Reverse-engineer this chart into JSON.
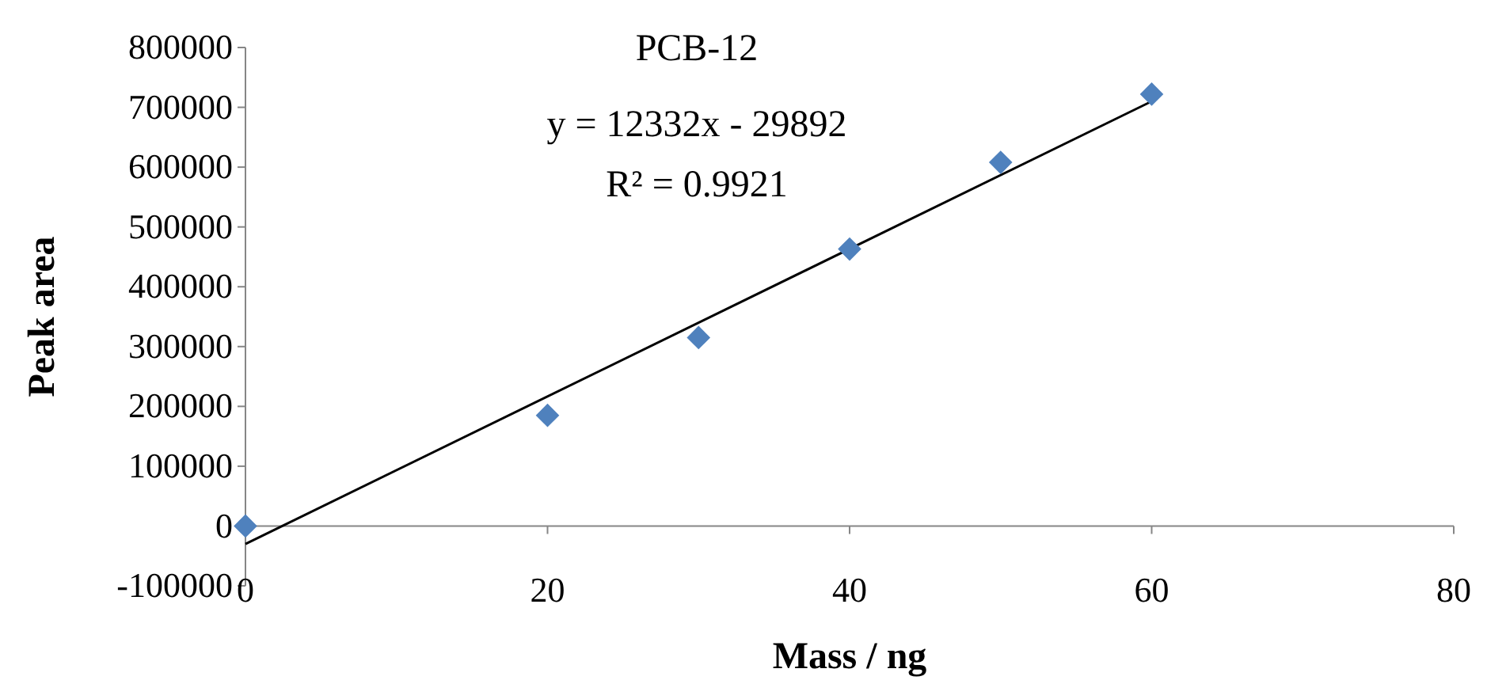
{
  "chart_data": {
    "type": "scatter",
    "title": "PCB-12",
    "xlabel": "Mass / ng",
    "ylabel": "Peak area",
    "annotations": [
      "y = 12332x - 29892",
      "R² = 0.9921"
    ],
    "xlim": [
      0,
      80
    ],
    "xticks": [
      0,
      20,
      40,
      60,
      80
    ],
    "ylim": [
      -100000,
      800000
    ],
    "yticks": [
      -100000,
      0,
      100000,
      200000,
      300000,
      400000,
      500000,
      600000,
      700000,
      800000
    ],
    "grid": false,
    "marker": "diamond",
    "series": [
      {
        "color": "#4f81bd",
        "x": [
          0,
          20,
          30,
          40,
          50,
          60
        ],
        "values": [
          0,
          185000,
          315000,
          463000,
          608000,
          722000
        ]
      },
      {
        "type": "line",
        "marker": "none",
        "color": "#000000",
        "x": [
          0,
          60
        ],
        "values": [
          -30000,
          710000
        ]
      }
    ]
  }
}
